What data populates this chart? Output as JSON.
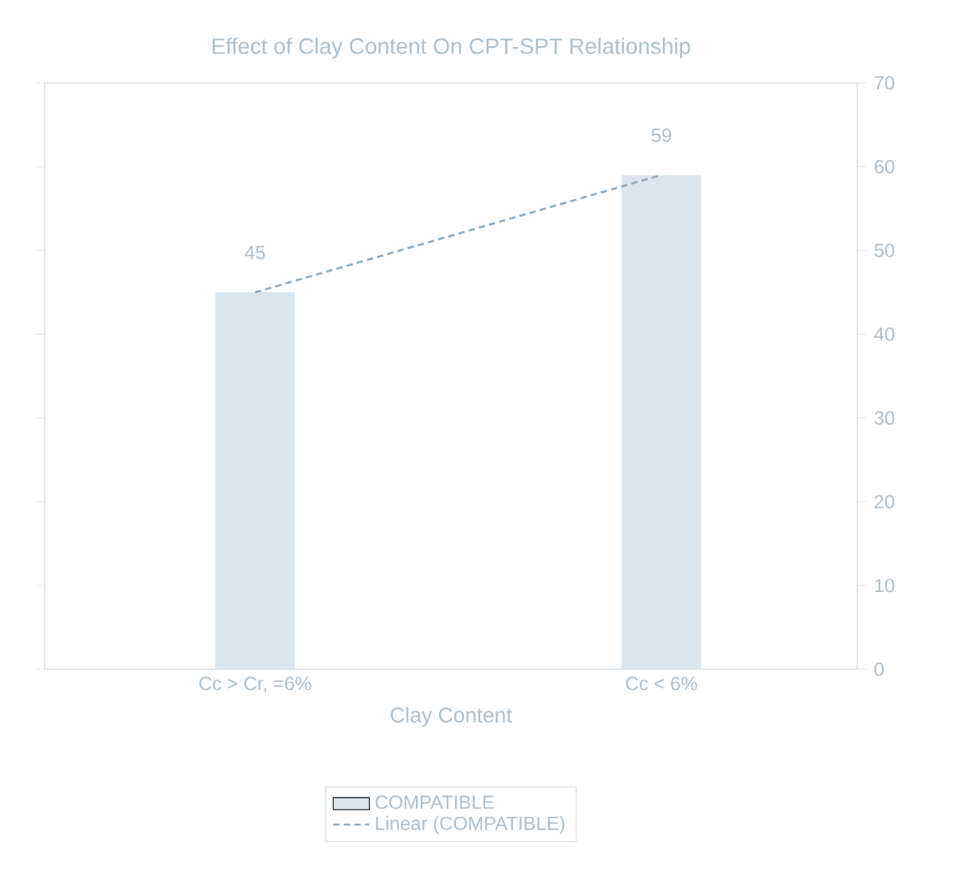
{
  "chart_data": {
    "type": "bar",
    "title": "Effect of Clay Content On CPT-SPT Relationship",
    "xlabel": "Clay Content",
    "categories": [
      "Cc > Cr, =6%",
      "Cc < 6%"
    ],
    "series": [
      {
        "name": "COMPATIBLE",
        "color": "#dbe5ed",
        "values": [
          45,
          59
        ],
        "value_labels": [
          "45",
          "59"
        ]
      },
      {
        "name": "Linear (COMPATIBLE)",
        "type": "line",
        "line_style": "dashed",
        "color": "#8fabbd",
        "values": [
          45,
          59
        ]
      }
    ],
    "ylim": [
      0,
      70
    ],
    "yticks": [
      0,
      10,
      20,
      30,
      40,
      50,
      60,
      70
    ],
    "legend": "bottom",
    "grid": false
  }
}
